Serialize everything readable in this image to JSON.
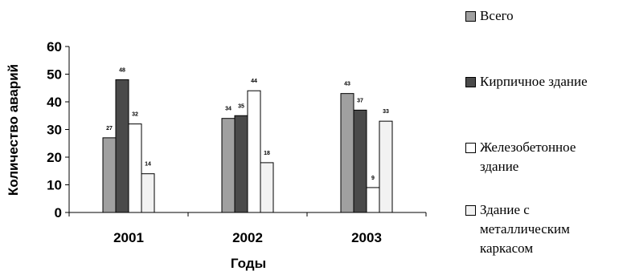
{
  "chart_data": {
    "type": "bar",
    "categories": [
      "2001",
      "2002",
      "2003"
    ],
    "series": [
      {
        "name": "Всего",
        "values": [
          27,
          34,
          43
        ],
        "color": "#a0a0a0"
      },
      {
        "name": "Кирпичное здание",
        "values": [
          48,
          35,
          37
        ],
        "color": "#4a4a4a"
      },
      {
        "name": "Железобетонное здание",
        "values": [
          32,
          44,
          9
        ],
        "color": "#ffffff"
      },
      {
        "name": "Здание с металлическим каркасом",
        "values": [
          14,
          18,
          33
        ],
        "color": "#f2f2f2"
      }
    ],
    "data_labels": [
      [
        "27",
        "34",
        "43"
      ],
      [
        "48",
        "35",
        "37"
      ],
      [
        "32",
        "44",
        "9"
      ],
      [
        "14",
        "18",
        "33"
      ]
    ],
    "xlabel": "Годы",
    "ylabel": "Количество аварий",
    "ylim": [
      0,
      60
    ],
    "yticks": [
      0,
      10,
      20,
      30,
      40,
      50,
      60
    ],
    "grid": false,
    "legend_position": "right"
  },
  "legend": {
    "items": [
      {
        "lines": [
          "Всего"
        ]
      },
      {
        "lines": [
          "Кирпичное здание"
        ]
      },
      {
        "lines": [
          "Железобетонное",
          "здание"
        ]
      },
      {
        "lines": [
          "Здание с",
          "металлическим",
          "каркасом"
        ]
      }
    ]
  }
}
